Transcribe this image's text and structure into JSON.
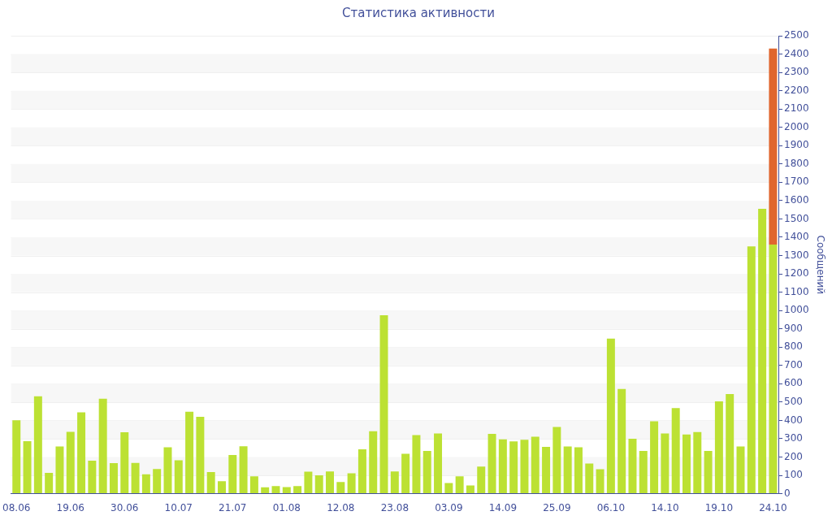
{
  "chart_data": {
    "type": "bar",
    "title": "Статистика активности",
    "ylabel": "Сообщений",
    "categories": [
      "08.06",
      null,
      null,
      null,
      null,
      "19.06",
      null,
      null,
      null,
      null,
      "30.06",
      null,
      null,
      null,
      null,
      "10.07",
      null,
      null,
      null,
      null,
      "21.07",
      null,
      null,
      null,
      null,
      "01.08",
      null,
      null,
      null,
      null,
      "12.08",
      null,
      null,
      null,
      null,
      "23.08",
      null,
      null,
      null,
      null,
      "03.09",
      null,
      null,
      null,
      null,
      "14.09",
      null,
      null,
      null,
      null,
      "25.09",
      null,
      null,
      null,
      null,
      "06.10",
      null,
      null,
      null,
      null,
      "14.10",
      null,
      null,
      null,
      null,
      "19.10",
      null,
      null,
      null,
      null,
      "24.10"
    ],
    "stacked": true,
    "series": [
      {
        "color": "#bce133",
        "values": [
          401,
          286,
          532,
          114,
          258,
          338,
          444,
          180,
          518,
          167,
          335,
          168,
          106,
          135,
          253,
          182,
          447,
          420,
          118,
          68,
          211,
          259,
          95,
          35,
          41,
          36,
          41,
          120,
          100,
          121,
          64,
          111,
          242,
          341,
          974,
          121,
          218,
          320,
          233,
          329,
          58,
          95,
          45,
          148,
          327,
          297,
          285,
          294,
          311,
          255,
          364,
          258,
          253,
          165,
          133,
          847,
          571,
          300,
          233,
          395,
          329,
          467,
          323,
          336,
          233,
          504,
          544,
          258,
          1350,
          1555,
          1360
        ]
      },
      {
        "color": "#e0662e",
        "values": [
          null,
          null,
          null,
          null,
          null,
          null,
          null,
          null,
          null,
          null,
          null,
          null,
          null,
          null,
          null,
          null,
          null,
          null,
          null,
          null,
          null,
          null,
          null,
          null,
          null,
          null,
          null,
          null,
          null,
          null,
          null,
          null,
          null,
          null,
          null,
          null,
          null,
          null,
          null,
          null,
          null,
          null,
          null,
          null,
          null,
          null,
          null,
          null,
          null,
          null,
          null,
          null,
          null,
          null,
          null,
          null,
          null,
          null,
          null,
          null,
          null,
          null,
          null,
          null,
          null,
          null,
          null,
          null,
          null,
          null,
          1070
        ]
      }
    ],
    "ylim": [
      0,
      2500
    ],
    "yticks": [
      0,
      100,
      200,
      300,
      400,
      500,
      600,
      700,
      800,
      900,
      1000,
      1100,
      1200,
      1300,
      1400,
      1500,
      1600,
      1700,
      1800,
      1900,
      2000,
      2100,
      2200,
      2300,
      2400,
      2500
    ],
    "grid": "y",
    "legend": false
  }
}
